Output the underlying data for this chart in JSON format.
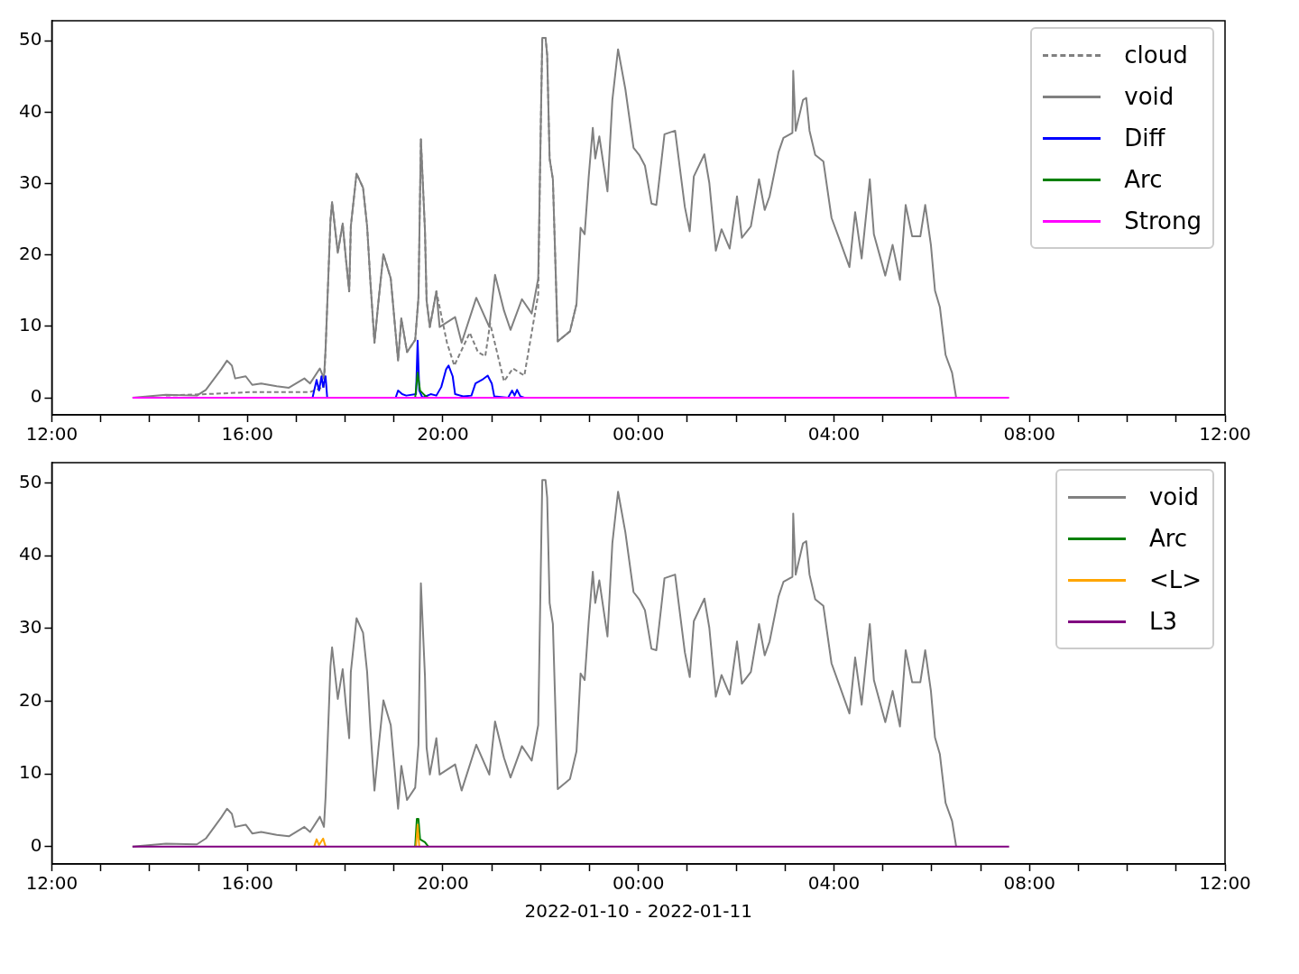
{
  "chart_data": [
    {
      "type": "line",
      "legend": "top right",
      "xlim": [
        "2022-01-10T12:00",
        "2022-01-11T12:00"
      ],
      "xticks": [
        {
          "value": "2022-01-10T12:00",
          "label": "12:00"
        },
        {
          "value": "2022-01-10T13:00",
          "label": null
        },
        {
          "value": "2022-01-10T14:00",
          "label": null
        },
        {
          "value": "2022-01-10T15:00",
          "label": null
        },
        {
          "value": "2022-01-10T16:00",
          "label": "16:00"
        },
        {
          "value": "2022-01-10T17:00",
          "label": null
        },
        {
          "value": "2022-01-10T18:00",
          "label": null
        },
        {
          "value": "2022-01-10T19:00",
          "label": null
        },
        {
          "value": "2022-01-10T20:00",
          "label": "20:00"
        },
        {
          "value": "2022-01-10T21:00",
          "label": null
        },
        {
          "value": "2022-01-10T22:00",
          "label": null
        },
        {
          "value": "2022-01-10T23:00",
          "label": null
        },
        {
          "value": "2022-01-11T00:00",
          "label": "00:00"
        },
        {
          "value": "2022-01-11T01:00",
          "label": null
        },
        {
          "value": "2022-01-11T02:00",
          "label": null
        },
        {
          "value": "2022-01-11T03:00",
          "label": null
        },
        {
          "value": "2022-01-11T04:00",
          "label": "04:00"
        },
        {
          "value": "2022-01-11T05:00",
          "label": null
        },
        {
          "value": "2022-01-11T06:00",
          "label": null
        },
        {
          "value": "2022-01-11T07:00",
          "label": null
        },
        {
          "value": "2022-01-11T08:00",
          "label": "08:00"
        },
        {
          "value": "2022-01-11T09:00",
          "label": null
        },
        {
          "value": "2022-01-11T10:00",
          "label": null
        },
        {
          "value": "2022-01-11T11:00",
          "label": null
        },
        {
          "value": "2022-01-11T12:00",
          "label": "12:00"
        }
      ],
      "ylim": [
        -2.4,
        52.8
      ],
      "yticks": [
        0,
        10,
        20,
        30,
        40,
        50
      ],
      "series": [
        {
          "name": "cloud",
          "color": "#808080",
          "line_style": "dashed",
          "x": [
            "2022-01-10T14:20",
            "2022-01-10T15:09",
            "2022-01-10T16:06",
            "2022-01-10T17:17",
            "2022-01-10T17:34",
            "2022-01-10T17:36",
            "2022-01-10T17:42",
            "2022-01-10T17:44",
            "2022-01-10T17:51",
            "2022-01-10T17:57",
            "2022-01-10T18:01",
            "2022-01-10T18:05",
            "2022-01-10T18:07",
            "2022-01-10T18:14",
            "2022-01-10T18:22",
            "2022-01-10T18:27",
            "2022-01-10T18:31",
            "2022-01-10T18:36",
            "2022-01-10T18:41",
            "2022-01-10T18:47",
            "2022-01-10T18:56",
            "2022-01-10T19:05",
            "2022-01-10T19:09",
            "2022-01-10T19:16",
            "2022-01-10T19:26",
            "2022-01-10T19:30",
            "2022-01-10T19:33",
            "2022-01-10T19:38",
            "2022-01-10T19:40",
            "2022-01-10T19:44",
            "2022-01-10T19:52",
            "2022-01-10T20:05",
            "2022-01-10T20:14",
            "2022-01-10T20:33",
            "2022-01-10T20:43",
            "2022-01-10T20:52",
            "2022-01-10T20:58",
            "2022-01-10T21:15",
            "2022-01-10T21:26",
            "2022-01-10T21:40",
            "2022-01-10T21:57",
            "2022-01-10T22:00",
            "2022-01-10T22:02",
            "2022-01-10T22:06",
            "2022-01-10T22:08",
            "2022-01-10T22:11",
            "2022-01-10T22:15",
            "2022-01-10T22:21",
            "2022-01-10T22:36",
            "2022-01-10T22:44"
          ],
          "values": [
            0.3,
            0.5,
            0.8,
            0.8,
            1.5,
            6.8,
            24.8,
            27.4,
            20.3,
            24.4,
            19.4,
            14.9,
            24.0,
            31.4,
            29.4,
            24.0,
            16.3,
            7.7,
            13.6,
            20.1,
            16.7,
            5.2,
            11.1,
            6.4,
            8.1,
            14.0,
            36.2,
            23.4,
            13.6,
            9.9,
            14.9,
            7.7,
            4.5,
            9.1,
            6.4,
            5.8,
            10.4,
            2.3,
            4.1,
            3.1,
            14.5,
            37.0,
            50.4,
            50.4,
            48.0,
            33.5,
            30.6,
            7.9,
            9.3,
            13.1
          ]
        },
        {
          "name": "void",
          "color": "#808080",
          "x": [
            "2022-01-10T13:39",
            "2022-01-10T14:20",
            "2022-01-10T14:58",
            "2022-01-10T15:09",
            "2022-01-10T15:28",
            "2022-01-10T15:35",
            "2022-01-10T15:41",
            "2022-01-10T15:45",
            "2022-01-10T15:58",
            "2022-01-10T16:06",
            "2022-01-10T16:17",
            "2022-01-10T16:36",
            "2022-01-10T16:51",
            "2022-01-10T17:10",
            "2022-01-10T17:17",
            "2022-01-10T17:29",
            "2022-01-10T17:34",
            "2022-01-10T17:36",
            "2022-01-10T17:42",
            "2022-01-10T17:44",
            "2022-01-10T17:51",
            "2022-01-10T17:57",
            "2022-01-10T18:01",
            "2022-01-10T18:05",
            "2022-01-10T18:07",
            "2022-01-10T18:14",
            "2022-01-10T18:22",
            "2022-01-10T18:27",
            "2022-01-10T18:31",
            "2022-01-10T18:36",
            "2022-01-10T18:41",
            "2022-01-10T18:47",
            "2022-01-10T18:56",
            "2022-01-10T19:05",
            "2022-01-10T19:09",
            "2022-01-10T19:16",
            "2022-01-10T19:26",
            "2022-01-10T19:30",
            "2022-01-10T19:33",
            "2022-01-10T19:38",
            "2022-01-10T19:40",
            "2022-01-10T19:44",
            "2022-01-10T19:52",
            "2022-01-10T19:56",
            "2022-01-10T20:15",
            "2022-01-10T20:23",
            "2022-01-10T20:41",
            "2022-01-10T20:57",
            "2022-01-10T21:04",
            "2022-01-10T21:15",
            "2022-01-10T21:23",
            "2022-01-10T21:37",
            "2022-01-10T21:49",
            "2022-01-10T21:57",
            "2022-01-10T22:00",
            "2022-01-10T22:02",
            "2022-01-10T22:06",
            "2022-01-10T22:08",
            "2022-01-10T22:11",
            "2022-01-10T22:15",
            "2022-01-10T22:21",
            "2022-01-10T22:36",
            "2022-01-10T22:44",
            "2022-01-10T22:49",
            "2022-01-10T22:54",
            "2022-01-10T22:59",
            "2022-01-10T23:04",
            "2022-01-10T23:07",
            "2022-01-10T23:12",
            "2022-01-10T23:22",
            "2022-01-10T23:28",
            "2022-01-10T23:35",
            "2022-01-10T23:44",
            "2022-01-10T23:54",
            "2022-01-11T00:01",
            "2022-01-11T00:08",
            "2022-01-11T00:16",
            "2022-01-11T00:22",
            "2022-01-11T00:32",
            "2022-01-11T00:45",
            "2022-01-11T00:57",
            "2022-01-11T01:03",
            "2022-01-11T01:08",
            "2022-01-11T01:21",
            "2022-01-11T01:27",
            "2022-01-11T01:35",
            "2022-01-11T01:42",
            "2022-01-11T01:52",
            "2022-01-11T02:01",
            "2022-01-11T02:07",
            "2022-01-11T02:18",
            "2022-01-11T02:28",
            "2022-01-11T02:35",
            "2022-01-11T02:41",
            "2022-01-11T02:52",
            "2022-01-11T02:58",
            "2022-01-11T03:09",
            "2022-01-11T03:10",
            "2022-01-11T03:13",
            "2022-01-11T03:22",
            "2022-01-11T03:26",
            "2022-01-11T03:30",
            "2022-01-11T03:37",
            "2022-01-11T03:47",
            "2022-01-11T03:57",
            "2022-01-11T04:06",
            "2022-01-11T04:19",
            "2022-01-11T04:26",
            "2022-01-11T04:34",
            "2022-01-11T04:44",
            "2022-01-11T04:49",
            "2022-01-11T05:03",
            "2022-01-11T05:12",
            "2022-01-11T05:21",
            "2022-01-11T05:28",
            "2022-01-11T05:36",
            "2022-01-11T05:46",
            "2022-01-11T05:52",
            "2022-01-11T05:59",
            "2022-01-11T06:04",
            "2022-01-11T06:10",
            "2022-01-11T06:17",
            "2022-01-11T06:25",
            "2022-01-11T06:30"
          ],
          "values": [
            0,
            0.4,
            0.3,
            1.1,
            4.0,
            5.2,
            4.5,
            2.7,
            3.0,
            1.8,
            2.0,
            1.6,
            1.4,
            2.7,
            2.0,
            4.1,
            2.7,
            6.8,
            24.8,
            27.4,
            20.3,
            24.4,
            19.4,
            14.9,
            24.0,
            31.4,
            29.4,
            24.0,
            16.3,
            7.7,
            13.6,
            20.1,
            16.7,
            5.2,
            11.1,
            6.4,
            8.1,
            14.0,
            36.2,
            23.4,
            13.6,
            9.9,
            14.9,
            9.9,
            11.3,
            7.7,
            14.0,
            9.9,
            17.2,
            12.2,
            9.5,
            13.8,
            11.8,
            16.7,
            37.0,
            50.4,
            50.4,
            48.0,
            33.5,
            30.6,
            7.9,
            9.3,
            13.1,
            23.8,
            22.9,
            31.0,
            37.8,
            33.5,
            36.6,
            28.9,
            41.7,
            48.8,
            43.2,
            35.0,
            34.0,
            32.5,
            27.2,
            27.0,
            36.9,
            37.4,
            26.7,
            23.3,
            31.0,
            34.1,
            30.1,
            20.6,
            23.6,
            20.9,
            28.2,
            22.4,
            24.0,
            30.6,
            26.3,
            28.2,
            34.4,
            36.4,
            37.1,
            45.8,
            37.4,
            41.7,
            42.0,
            37.4,
            34.0,
            33.1,
            25.2,
            22.4,
            18.3,
            26.0,
            19.5,
            30.6,
            22.9,
            17.1,
            21.4,
            16.5,
            27.0,
            22.6,
            22.6,
            27.0,
            21.4,
            15.0,
            12.7,
            6.0,
            3.5,
            0
          ]
        },
        {
          "name": "Diff",
          "color": "#0000ff",
          "x": [
            "2022-01-10T17:20",
            "2022-01-10T17:25",
            "2022-01-10T17:28",
            "2022-01-10T17:31",
            "2022-01-10T17:33",
            "2022-01-10T17:36",
            "2022-01-10T17:38",
            "2022-01-10T18:30",
            "2022-01-10T19:02",
            "2022-01-10T19:05",
            "2022-01-10T19:10",
            "2022-01-10T19:15",
            "2022-01-10T19:27",
            "2022-01-10T19:29",
            "2022-01-10T19:31",
            "2022-01-10T19:35",
            "2022-01-10T19:45",
            "2022-01-10T19:52",
            "2022-01-10T19:58",
            "2022-01-10T20:04",
            "2022-01-10T20:07",
            "2022-01-10T20:12",
            "2022-01-10T20:15",
            "2022-01-10T20:25",
            "2022-01-10T20:35",
            "2022-01-10T20:40",
            "2022-01-10T20:48",
            "2022-01-10T20:55",
            "2022-01-10T21:00",
            "2022-01-10T21:03",
            "2022-01-10T21:20",
            "2022-01-10T21:25",
            "2022-01-10T21:28",
            "2022-01-10T21:31",
            "2022-01-10T21:35",
            "2022-01-10T21:40"
          ],
          "values": [
            0,
            2.5,
            1.0,
            3.0,
            1.5,
            3.0,
            0,
            null,
            0,
            1.0,
            0.5,
            0.3,
            0.5,
            8.0,
            1.0,
            0,
            0.5,
            0.3,
            1.5,
            4.0,
            4.5,
            3.0,
            0.5,
            0.2,
            0.3,
            2.0,
            2.5,
            3.1,
            2.0,
            0.2,
            0,
            1.0,
            0.3,
            1.1,
            0.2,
            0
          ]
        },
        {
          "name": "Arc",
          "color": "#008000",
          "x": [
            "2022-01-10T19:26",
            "2022-01-10T19:29",
            "2022-01-10T19:32",
            "2022-01-10T19:38",
            "2022-01-10T19:42"
          ],
          "values": [
            0,
            3.5,
            1.0,
            0.3,
            0
          ]
        },
        {
          "name": "Strong",
          "color": "#ff00ff",
          "x": [
            "2022-01-10T13:39",
            "2022-01-11T07:35"
          ],
          "values": [
            0,
            0
          ]
        }
      ]
    },
    {
      "type": "line",
      "legend": "top right",
      "xlabel": "2022-01-10 - 2022-01-11",
      "xlim": [
        "2022-01-10T12:00",
        "2022-01-11T12:00"
      ],
      "xticks": [
        {
          "value": "2022-01-10T12:00",
          "label": "12:00"
        },
        {
          "value": "2022-01-10T13:00",
          "label": null
        },
        {
          "value": "2022-01-10T14:00",
          "label": null
        },
        {
          "value": "2022-01-10T15:00",
          "label": null
        },
        {
          "value": "2022-01-10T16:00",
          "label": "16:00"
        },
        {
          "value": "2022-01-10T17:00",
          "label": null
        },
        {
          "value": "2022-01-10T18:00",
          "label": null
        },
        {
          "value": "2022-01-10T19:00",
          "label": null
        },
        {
          "value": "2022-01-10T20:00",
          "label": "20:00"
        },
        {
          "value": "2022-01-10T21:00",
          "label": null
        },
        {
          "value": "2022-01-10T22:00",
          "label": null
        },
        {
          "value": "2022-01-10T23:00",
          "label": null
        },
        {
          "value": "2022-01-11T00:00",
          "label": "00:00"
        },
        {
          "value": "2022-01-11T01:00",
          "label": null
        },
        {
          "value": "2022-01-11T02:00",
          "label": null
        },
        {
          "value": "2022-01-11T03:00",
          "label": null
        },
        {
          "value": "2022-01-11T04:00",
          "label": "04:00"
        },
        {
          "value": "2022-01-11T05:00",
          "label": null
        },
        {
          "value": "2022-01-11T06:00",
          "label": null
        },
        {
          "value": "2022-01-11T07:00",
          "label": null
        },
        {
          "value": "2022-01-11T08:00",
          "label": "08:00"
        },
        {
          "value": "2022-01-11T09:00",
          "label": null
        },
        {
          "value": "2022-01-11T10:00",
          "label": null
        },
        {
          "value": "2022-01-11T11:00",
          "label": null
        },
        {
          "value": "2022-01-11T12:00",
          "label": "12:00"
        }
      ],
      "ylim": [
        -2.4,
        52.8
      ],
      "yticks": [
        0,
        10,
        20,
        30,
        40,
        50
      ],
      "series": [
        {
          "name": "void",
          "color": "#808080",
          "x": [
            "2022-01-10T13:39",
            "2022-01-10T14:20",
            "2022-01-10T14:58",
            "2022-01-10T15:09",
            "2022-01-10T15:28",
            "2022-01-10T15:35",
            "2022-01-10T15:41",
            "2022-01-10T15:45",
            "2022-01-10T15:58",
            "2022-01-10T16:06",
            "2022-01-10T16:17",
            "2022-01-10T16:36",
            "2022-01-10T16:51",
            "2022-01-10T17:10",
            "2022-01-10T17:17",
            "2022-01-10T17:29",
            "2022-01-10T17:34",
            "2022-01-10T17:36",
            "2022-01-10T17:42",
            "2022-01-10T17:44",
            "2022-01-10T17:51",
            "2022-01-10T17:57",
            "2022-01-10T18:01",
            "2022-01-10T18:05",
            "2022-01-10T18:07",
            "2022-01-10T18:14",
            "2022-01-10T18:22",
            "2022-01-10T18:27",
            "2022-01-10T18:31",
            "2022-01-10T18:36",
            "2022-01-10T18:41",
            "2022-01-10T18:47",
            "2022-01-10T18:56",
            "2022-01-10T19:05",
            "2022-01-10T19:09",
            "2022-01-10T19:16",
            "2022-01-10T19:26",
            "2022-01-10T19:30",
            "2022-01-10T19:33",
            "2022-01-10T19:38",
            "2022-01-10T19:40",
            "2022-01-10T19:44",
            "2022-01-10T19:52",
            "2022-01-10T19:56",
            "2022-01-10T20:15",
            "2022-01-10T20:23",
            "2022-01-10T20:41",
            "2022-01-10T20:57",
            "2022-01-10T21:04",
            "2022-01-10T21:15",
            "2022-01-10T21:23",
            "2022-01-10T21:37",
            "2022-01-10T21:49",
            "2022-01-10T21:57",
            "2022-01-10T22:00",
            "2022-01-10T22:02",
            "2022-01-10T22:06",
            "2022-01-10T22:08",
            "2022-01-10T22:11",
            "2022-01-10T22:15",
            "2022-01-10T22:21",
            "2022-01-10T22:36",
            "2022-01-10T22:44",
            "2022-01-10T22:49",
            "2022-01-10T22:54",
            "2022-01-10T22:59",
            "2022-01-10T23:04",
            "2022-01-10T23:07",
            "2022-01-10T23:12",
            "2022-01-10T23:22",
            "2022-01-10T23:28",
            "2022-01-10T23:35",
            "2022-01-10T23:44",
            "2022-01-10T23:54",
            "2022-01-11T00:01",
            "2022-01-11T00:08",
            "2022-01-11T00:16",
            "2022-01-11T00:22",
            "2022-01-11T00:32",
            "2022-01-11T00:45",
            "2022-01-11T00:57",
            "2022-01-11T01:03",
            "2022-01-11T01:08",
            "2022-01-11T01:21",
            "2022-01-11T01:27",
            "2022-01-11T01:35",
            "2022-01-11T01:42",
            "2022-01-11T01:52",
            "2022-01-11T02:01",
            "2022-01-11T02:07",
            "2022-01-11T02:18",
            "2022-01-11T02:28",
            "2022-01-11T02:35",
            "2022-01-11T02:41",
            "2022-01-11T02:52",
            "2022-01-11T02:58",
            "2022-01-11T03:09",
            "2022-01-11T03:10",
            "2022-01-11T03:13",
            "2022-01-11T03:22",
            "2022-01-11T03:26",
            "2022-01-11T03:30",
            "2022-01-11T03:37",
            "2022-01-11T03:47",
            "2022-01-11T03:57",
            "2022-01-11T04:06",
            "2022-01-11T04:19",
            "2022-01-11T04:26",
            "2022-01-11T04:34",
            "2022-01-11T04:44",
            "2022-01-11T04:49",
            "2022-01-11T05:03",
            "2022-01-11T05:12",
            "2022-01-11T05:21",
            "2022-01-11T05:28",
            "2022-01-11T05:36",
            "2022-01-11T05:46",
            "2022-01-11T05:52",
            "2022-01-11T05:59",
            "2022-01-11T06:04",
            "2022-01-11T06:10",
            "2022-01-11T06:17",
            "2022-01-11T06:25",
            "2022-01-11T06:30"
          ],
          "values": [
            0,
            0.4,
            0.3,
            1.1,
            4.0,
            5.2,
            4.5,
            2.7,
            3.0,
            1.8,
            2.0,
            1.6,
            1.4,
            2.7,
            2.0,
            4.1,
            2.7,
            6.8,
            24.8,
            27.4,
            20.3,
            24.4,
            19.4,
            14.9,
            24.0,
            31.4,
            29.4,
            24.0,
            16.3,
            7.7,
            13.6,
            20.1,
            16.7,
            5.2,
            11.1,
            6.4,
            8.1,
            14.0,
            36.2,
            23.4,
            13.6,
            9.9,
            14.9,
            9.9,
            11.3,
            7.7,
            14.0,
            9.9,
            17.2,
            12.2,
            9.5,
            13.8,
            11.8,
            16.7,
            37.0,
            50.4,
            50.4,
            48.0,
            33.5,
            30.6,
            7.9,
            9.3,
            13.1,
            23.8,
            22.9,
            31.0,
            37.8,
            33.5,
            36.6,
            28.9,
            41.7,
            48.8,
            43.2,
            35.0,
            34.0,
            32.5,
            27.2,
            27.0,
            36.9,
            37.4,
            26.7,
            23.3,
            31.0,
            34.1,
            30.1,
            20.6,
            23.6,
            20.9,
            28.2,
            22.4,
            24.0,
            30.6,
            26.3,
            28.2,
            34.4,
            36.4,
            37.1,
            45.8,
            37.4,
            41.7,
            42.0,
            37.4,
            34.0,
            33.1,
            25.2,
            22.4,
            18.3,
            26.0,
            19.5,
            30.6,
            22.9,
            17.1,
            21.4,
            16.5,
            27.0,
            22.6,
            22.6,
            27.0,
            21.4,
            15.0,
            12.7,
            6.0,
            3.5,
            0
          ]
        },
        {
          "name": "Arc",
          "color": "#008000",
          "x": [
            "2022-01-10T19:26",
            "2022-01-10T19:28",
            "2022-01-10T19:30",
            "2022-01-10T19:32",
            "2022-01-10T19:38",
            "2022-01-10T19:42"
          ],
          "values": [
            0,
            3.8,
            3.8,
            1.0,
            0.6,
            0
          ]
        },
        {
          "name": "<L>",
          "color": "#ffa500",
          "x": [
            "2022-01-10T17:22",
            "2022-01-10T17:25",
            "2022-01-10T17:28",
            "2022-01-10T17:33",
            "2022-01-10T17:36",
            "2022-01-10T18:30",
            "2022-01-10T19:27",
            "2022-01-10T19:29",
            "2022-01-10T19:31"
          ],
          "values": [
            0,
            1.0,
            0.2,
            1.1,
            0,
            null,
            0,
            3.0,
            0
          ]
        },
        {
          "name": "L3",
          "color": "#800080",
          "x": [
            "2022-01-10T13:39",
            "2022-01-11T07:35"
          ],
          "values": [
            0,
            0
          ]
        }
      ]
    }
  ]
}
